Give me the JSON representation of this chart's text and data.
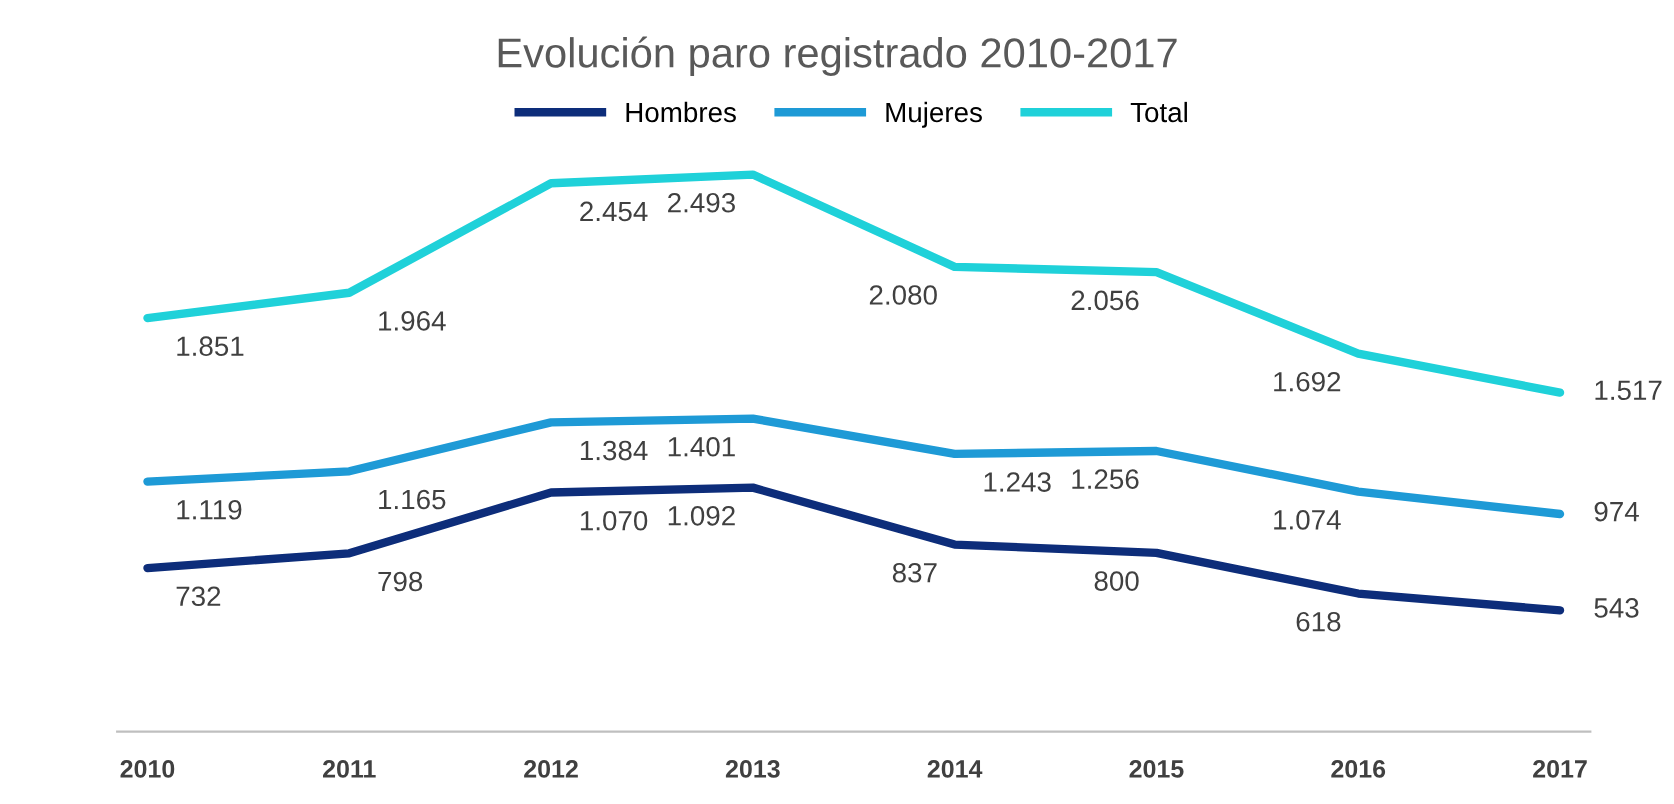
{
  "chart_data": {
    "type": "line",
    "title": "Evolución paro registrado 2010-2017",
    "categories": [
      "2010",
      "2011",
      "2012",
      "2013",
      "2014",
      "2015",
      "2016",
      "2017"
    ],
    "legend": "top",
    "grid": false,
    "marker": "none",
    "line_style": "solid",
    "series": [
      {
        "name": "Hombres",
        "color": "#0d2d7a",
        "values": [
          732,
          798,
          1070,
          1092,
          837,
          800,
          618,
          543
        ],
        "value_labels": [
          "732",
          "798",
          "1.070",
          "1.092",
          "837",
          "800",
          "618",
          "543"
        ]
      },
      {
        "name": "Mujeres",
        "color": "#1e9ad6",
        "values": [
          1119,
          1165,
          1384,
          1401,
          1243,
          1256,
          1074,
          974
        ],
        "value_labels": [
          "1.119",
          "1.165",
          "1.384",
          "1.401",
          "1.243",
          "1.256",
          "1.074",
          "974"
        ]
      },
      {
        "name": "Total",
        "color": "#1fd1d9",
        "values": [
          1851,
          1964,
          2454,
          2493,
          2080,
          2056,
          1692,
          1517
        ],
        "value_labels": [
          "1.851",
          "1.964",
          "2.454",
          "2.493",
          "2.080",
          "2.056",
          "1.692",
          "1.517"
        ]
      }
    ]
  }
}
